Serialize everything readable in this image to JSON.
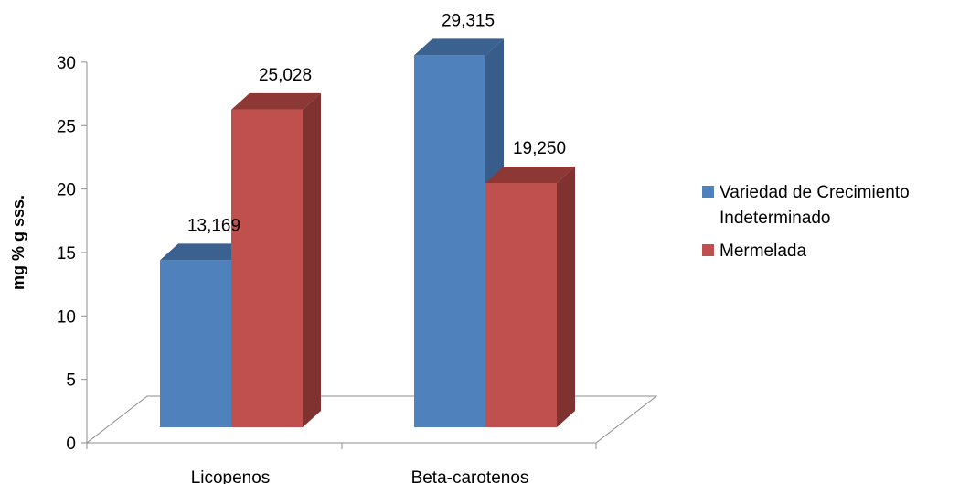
{
  "chart_data": {
    "type": "bar",
    "categories": [
      "Licopenos",
      "Beta-carotenos"
    ],
    "series": [
      {
        "name": "Variedad de Crecimiento Indeterminado",
        "values": [
          13.169,
          29.315
        ],
        "labels": [
          "13,169",
          "29,315"
        ],
        "color": "#4F81BD",
        "side_color": "#385D8A",
        "top_color": "#3B6190"
      },
      {
        "name": "Mermelada",
        "values": [
          25.028,
          19.25
        ],
        "labels": [
          "25,028",
          "19,250"
        ],
        "color": "#C0504D",
        "side_color": "#7F3230",
        "top_color": "#8E3836"
      }
    ],
    "ylabel": "mg % g sss.",
    "ylim": [
      0,
      30
    ],
    "yticks": [
      "0",
      "5",
      "10",
      "15",
      "20",
      "25",
      "30"
    ],
    "grid": false,
    "legend_position": "right",
    "style": "3d-clustered-column"
  }
}
